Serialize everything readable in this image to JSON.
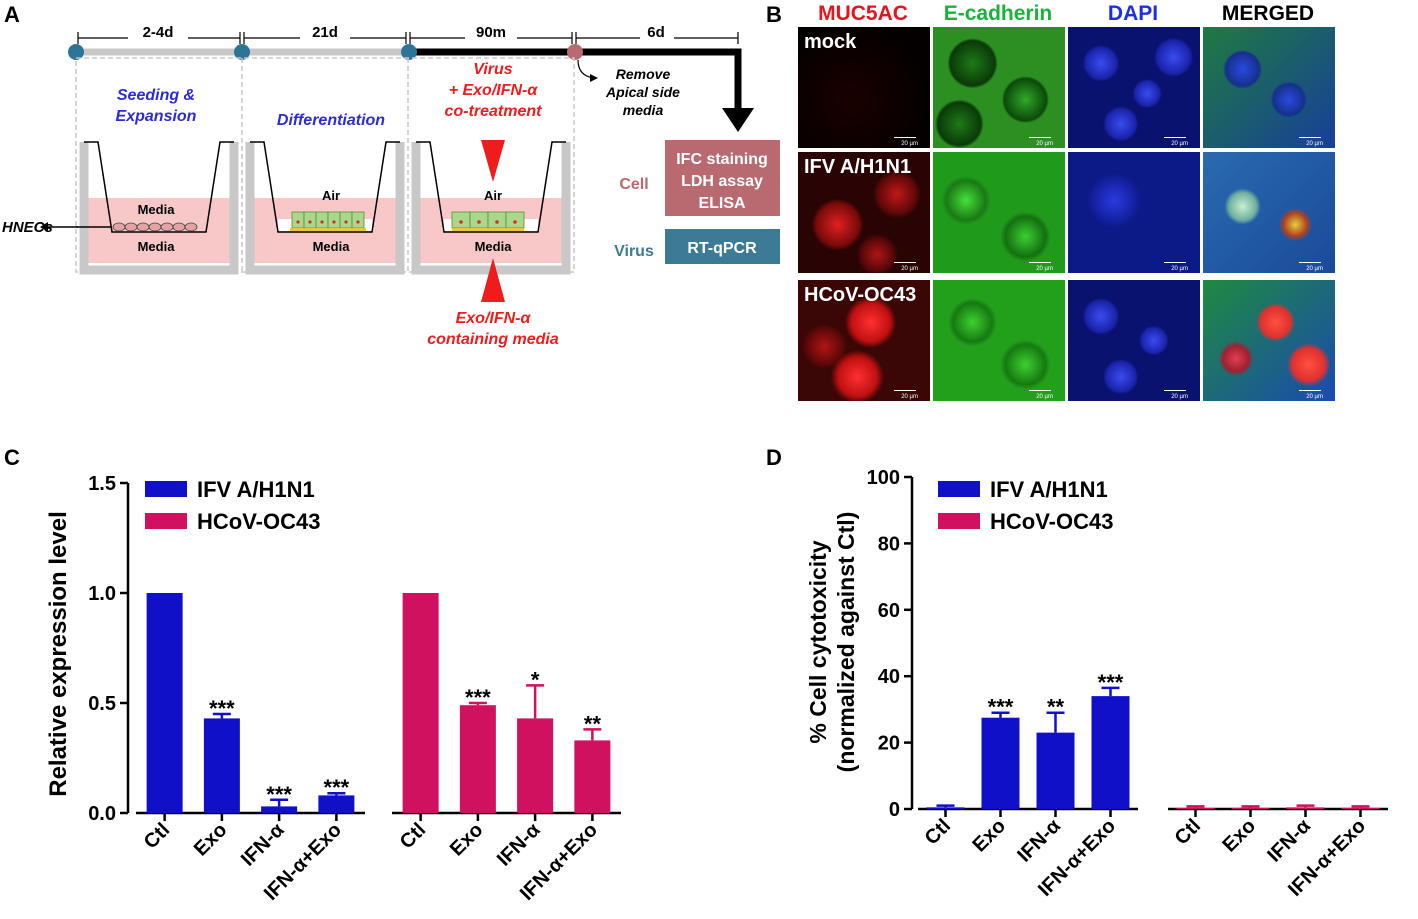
{
  "panel_labels": {
    "a": "A",
    "b": "B",
    "c": "C",
    "d": "D"
  },
  "panelA": {
    "timeline": [
      "2-4d",
      "21d",
      "90m",
      "6d"
    ],
    "stage1": {
      "title": [
        "Seeding &",
        "Expansion"
      ],
      "top_media": "Media",
      "bottom_media": "Media",
      "cells_label": "HNECs"
    },
    "stage2": {
      "title": "Differentiation",
      "air": "Air",
      "media": "Media"
    },
    "stage3": {
      "title": [
        "Virus",
        "+ Exo/IFN-α",
        "co-treatment"
      ],
      "air": "Air",
      "media": "Media",
      "bottom_note": [
        "Exo/IFN-α",
        "containing media"
      ]
    },
    "stage4": {
      "note": [
        "Remove",
        "Apical side",
        "media"
      ]
    },
    "cell_label": "Cell",
    "cell_assays": [
      "IFC staining",
      "LDH assay",
      "ELISA"
    ],
    "virus_label": "Virus",
    "virus_assay": "RT-qPCR",
    "colors": {
      "cell_box": "#b96a70",
      "virus_box": "#3d7a96",
      "blue_text": "#2b2bd9",
      "red_text": "#ee1c1c"
    }
  },
  "panelB": {
    "columns": [
      {
        "label": "MUC5AC",
        "color": "#e8141d"
      },
      {
        "label": "E-cadherin",
        "color": "#19b33a"
      },
      {
        "label": "DAPI",
        "color": "#1d2ee8"
      },
      {
        "label": "MERGED",
        "color": "#000000"
      }
    ],
    "rows": [
      "mock",
      "IFV A/H1N1",
      "HCoV-OC43"
    ],
    "scale_bar": "20 µm"
  },
  "chart_data": [
    {
      "type": "bar",
      "panel": "C",
      "ylabel": "Relative expression level",
      "ylim": [
        0,
        1.5
      ],
      "yticks": [
        "0.0",
        "0.5",
        "1.0",
        "1.5"
      ],
      "categories": [
        "Ctl",
        "Exo",
        "IFN-α",
        "IFN-α+Exo"
      ],
      "series": [
        {
          "name": "IFV A/H1N1",
          "color": "#1010c8",
          "values": [
            1.0,
            0.43,
            0.03,
            0.08
          ],
          "errors": [
            0,
            0.02,
            0.03,
            0.01
          ],
          "significance": [
            "",
            "***",
            "***",
            "***"
          ]
        },
        {
          "name": "HCoV-OC43",
          "color": "#d0115f",
          "values": [
            1.0,
            0.49,
            0.43,
            0.33
          ],
          "errors": [
            0,
            0.01,
            0.15,
            0.05
          ],
          "significance": [
            "",
            "***",
            "*",
            "**"
          ]
        }
      ]
    },
    {
      "type": "bar",
      "panel": "D",
      "ylabel": [
        "% Cell cytotoxicity",
        "(normalized against Ctl)"
      ],
      "ylim": [
        0,
        100
      ],
      "yticks": [
        "0",
        "20",
        "40",
        "60",
        "80",
        "100"
      ],
      "categories": [
        "Ctl",
        "Exo",
        "IFN-α",
        "IFN-α+Exo"
      ],
      "series": [
        {
          "name": "IFV A/H1N1",
          "color": "#1010c8",
          "values": [
            0.5,
            27.5,
            23,
            34
          ],
          "errors": [
            0.5,
            1.5,
            6,
            2.5
          ],
          "significance": [
            "",
            "***",
            "**",
            "***"
          ]
        },
        {
          "name": "HCoV-OC43",
          "color": "#d0115f",
          "values": [
            0.3,
            0.3,
            0.5,
            0.3
          ],
          "errors": [
            0.5,
            0.5,
            0.5,
            0.5
          ],
          "significance": [
            "",
            "",
            "",
            ""
          ]
        }
      ]
    }
  ]
}
